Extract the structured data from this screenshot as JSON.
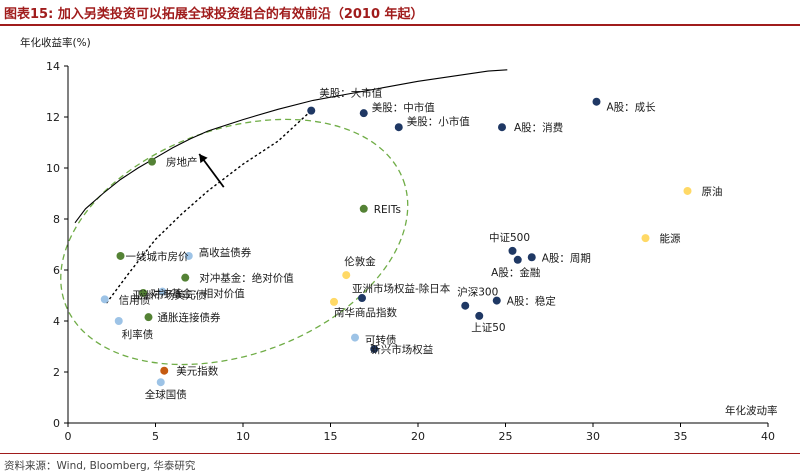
{
  "title": "图表15:   加入另类投资可以拓展全球投资组合的有效前沿（2010 年起）",
  "source": "资料来源：Wind, Bloomberg, 华泰研究",
  "chart_data": {
    "type": "scatter",
    "ylabel": "年化收益率(%)",
    "xlabel": "年化波动率",
    "xlim": [
      0,
      40
    ],
    "ylim": [
      0,
      14
    ],
    "xticks": [
      0,
      5,
      10,
      15,
      20,
      25,
      30,
      35,
      40
    ],
    "yticks": [
      0,
      2,
      4,
      6,
      8,
      10,
      12,
      14
    ],
    "grid": false,
    "colors": {
      "navy": "#1f3864",
      "green": "#548235",
      "lightblue": "#9dc3e6",
      "yellow": "#ffd966",
      "orange": "#c55a11",
      "frontier": "#000000",
      "ellipse": "#70ad47"
    },
    "points": [
      {
        "label": "美股：大市值",
        "x": 13.9,
        "y": 12.25,
        "color": "navy"
      },
      {
        "label": "美股：中市值",
        "x": 16.9,
        "y": 12.15,
        "color": "navy"
      },
      {
        "label": "美股：小市值",
        "x": 18.9,
        "y": 11.6,
        "color": "navy"
      },
      {
        "label": "A股：消费",
        "x": 24.8,
        "y": 11.6,
        "color": "navy"
      },
      {
        "label": "A股：成长",
        "x": 30.2,
        "y": 12.6,
        "color": "navy"
      },
      {
        "label": "中证500",
        "x": 25.4,
        "y": 6.75,
        "color": "navy"
      },
      {
        "label": "A股：周期",
        "x": 26.5,
        "y": 6.5,
        "color": "navy"
      },
      {
        "label": "A股：金融",
        "x": 25.7,
        "y": 6.4,
        "color": "navy"
      },
      {
        "label": "沪深300",
        "x": 22.7,
        "y": 4.6,
        "color": "navy"
      },
      {
        "label": "A股：稳定",
        "x": 24.5,
        "y": 4.8,
        "color": "navy"
      },
      {
        "label": "上证50",
        "x": 23.5,
        "y": 4.2,
        "color": "navy"
      },
      {
        "label": "亚洲市场权益-除日本",
        "x": 16.8,
        "y": 4.9,
        "color": "navy"
      },
      {
        "label": "新兴市场权益",
        "x": 17.5,
        "y": 2.9,
        "color": "navy"
      },
      {
        "label": "房地产",
        "x": 4.8,
        "y": 10.25,
        "color": "green"
      },
      {
        "label": "REITs",
        "x": 16.9,
        "y": 8.4,
        "color": "green"
      },
      {
        "label": "一线城市房价",
        "x": 3.0,
        "y": 6.55,
        "color": "green"
      },
      {
        "label": "对冲基金：绝对价值",
        "x": 6.7,
        "y": 5.7,
        "color": "green"
      },
      {
        "label": "对冲基金：相对价值",
        "x": 4.3,
        "y": 5.1,
        "color": "green"
      },
      {
        "label": "通胀连接债券",
        "x": 4.6,
        "y": 4.15,
        "color": "green"
      },
      {
        "label": "高收益债券",
        "x": 6.9,
        "y": 6.55,
        "color": "lightblue"
      },
      {
        "label": "亚洲市场美元债",
        "x": 5.4,
        "y": 5.15,
        "color": "lightblue"
      },
      {
        "label": "信用债",
        "x": 2.1,
        "y": 4.85,
        "color": "lightblue"
      },
      {
        "label": "利率债",
        "x": 2.9,
        "y": 4.0,
        "color": "lightblue"
      },
      {
        "label": "可转债",
        "x": 16.4,
        "y": 3.35,
        "color": "lightblue"
      },
      {
        "label": "全球国债",
        "x": 5.3,
        "y": 1.6,
        "color": "lightblue"
      },
      {
        "label": "原油",
        "x": 35.4,
        "y": 9.1,
        "color": "yellow"
      },
      {
        "label": "能源",
        "x": 33.0,
        "y": 7.25,
        "color": "yellow"
      },
      {
        "label": "伦敦金",
        "x": 15.9,
        "y": 5.8,
        "color": "yellow"
      },
      {
        "label": "南华商品指数",
        "x": 15.2,
        "y": 4.75,
        "color": "yellow"
      },
      {
        "label": "美元指数",
        "x": 5.5,
        "y": 2.05,
        "color": "orange"
      }
    ],
    "frontier_solid": [
      [
        0.4,
        7.85
      ],
      [
        1,
        8.4
      ],
      [
        2,
        9.0
      ],
      [
        3,
        9.55
      ],
      [
        4,
        10.0
      ],
      [
        5,
        10.4
      ],
      [
        6,
        10.8
      ],
      [
        7,
        11.15
      ],
      [
        8,
        11.45
      ],
      [
        10,
        11.9
      ],
      [
        12,
        12.3
      ],
      [
        14,
        12.65
      ],
      [
        16,
        12.9
      ],
      [
        18,
        13.15
      ],
      [
        20,
        13.4
      ],
      [
        22,
        13.6
      ],
      [
        24,
        13.8
      ],
      [
        25.1,
        13.85
      ]
    ],
    "frontier_dotted": [
      [
        2.2,
        4.7
      ],
      [
        3.5,
        5.9
      ],
      [
        5,
        7.2
      ],
      [
        6.5,
        8.2
      ],
      [
        8,
        9.1
      ],
      [
        10,
        10.15
      ],
      [
        12,
        11.05
      ],
      [
        13.9,
        12.25
      ]
    ],
    "ellipse": {
      "cx": 9.5,
      "cy": 7.1,
      "rx": 14.4,
      "ry": 5.55,
      "rotate_deg": 20
    }
  }
}
